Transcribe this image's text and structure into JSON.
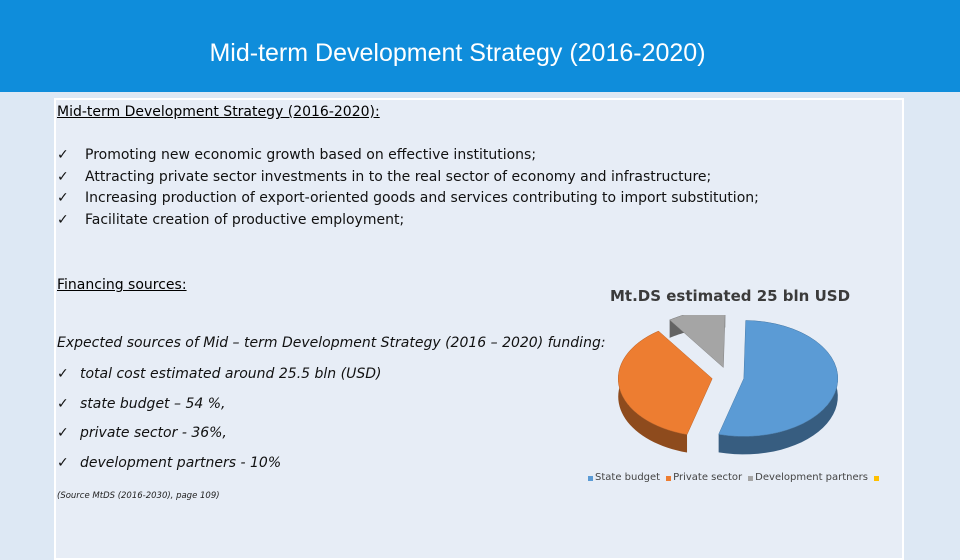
{
  "header": {
    "title": "Mid-term Development Strategy (2016-2020)"
  },
  "main": {
    "heading": "Mid-term Development Strategy (2016-2020):",
    "bullet_mark": "✓",
    "bullets": [
      "Promoting new economic growth based on effective institutions;",
      "Attracting private sector investments in to the real sector of economy and infrastructure;",
      "Increasing production of export-oriented goods and services contributing to import substitution;",
      "Facilitate creation of productive employment;"
    ],
    "financing_heading": "Financing sources:",
    "expected_text": "Expected sources of Mid – term Development Strategy (2016 – 2020)  funding:",
    "funding_items": [
      "total cost estimated around 25.5 bln (USD)",
      "state budget – 54 %,",
      "private sector - 36%,",
      "development partners  - 10%"
    ],
    "source": "(Source MtDS (2016-2030), page 109)"
  },
  "chart_data": {
    "type": "pie",
    "title": "Mt.DS estimated 25 bln USD",
    "categories": [
      "State budget",
      "Private sector",
      "Development partners",
      ""
    ],
    "values": [
      54,
      36,
      10,
      0
    ],
    "colors": [
      "#5b9bd5",
      "#ed7d31",
      "#a5a5a5",
      "#ffc000"
    ],
    "exploded": true,
    "style": "3d"
  }
}
